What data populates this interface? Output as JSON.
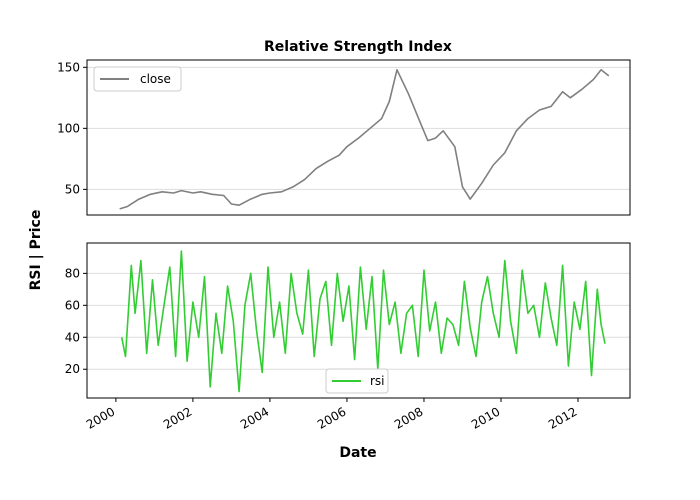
{
  "figure": {
    "title": "Relative Strength Index",
    "ylabel": "RSI | Price",
    "xlabel": "Date"
  },
  "chart_data": [
    {
      "type": "line",
      "panel": "top",
      "title": "Relative Strength Index",
      "xlabel": "",
      "ylabel": "",
      "xlim": [
        1999.25,
        2013.35
      ],
      "ylim": [
        29,
        156
      ],
      "yticks": [
        50,
        100,
        150
      ],
      "grid": "horizontal",
      "legend_position": "top-left",
      "series": [
        {
          "name": "close",
          "color": "#808080",
          "x": [
            2000.1,
            2000.3,
            2000.6,
            2000.9,
            2001.2,
            2001.5,
            2001.7,
            2002.0,
            2002.2,
            2002.5,
            2002.8,
            2003.0,
            2003.2,
            2003.5,
            2003.8,
            2004.0,
            2004.3,
            2004.6,
            2004.9,
            2005.2,
            2005.5,
            2005.8,
            2006.0,
            2006.3,
            2006.6,
            2006.9,
            2007.1,
            2007.3,
            2007.6,
            2007.9,
            2008.1,
            2008.3,
            2008.5,
            2008.8,
            2009.0,
            2009.2,
            2009.5,
            2009.8,
            2010.1,
            2010.4,
            2010.7,
            2011.0,
            2011.3,
            2011.6,
            2011.8,
            2012.1,
            2012.4,
            2012.6,
            2012.8
          ],
          "y": [
            34,
            36,
            42,
            46,
            48,
            47,
            49,
            47,
            48,
            46,
            45,
            38,
            37,
            42,
            46,
            47,
            48,
            52,
            58,
            67,
            73,
            78,
            85,
            92,
            100,
            108,
            122,
            148,
            128,
            105,
            90,
            92,
            98,
            85,
            52,
            42,
            55,
            70,
            80,
            98,
            108,
            115,
            118,
            130,
            125,
            132,
            140,
            148,
            143
          ]
        }
      ]
    },
    {
      "type": "line",
      "panel": "bottom",
      "xlabel": "Date",
      "ylabel": "",
      "xlim": [
        1999.25,
        2013.35
      ],
      "ylim": [
        2,
        99
      ],
      "yticks": [
        20,
        40,
        60,
        80
      ],
      "xticks": [
        "2000",
        "2002",
        "2004",
        "2006",
        "2008",
        "2010",
        "2012"
      ],
      "xtick_values": [
        2000,
        2002,
        2004,
        2006,
        2008,
        2010,
        2012
      ],
      "grid": "horizontal",
      "legend_position": "lower-center",
      "series": [
        {
          "name": "rsi",
          "color": "#32cd32",
          "x": [
            2000.15,
            2000.25,
            2000.4,
            2000.5,
            2000.65,
            2000.8,
            2000.95,
            2001.1,
            2001.25,
            2001.4,
            2001.55,
            2001.7,
            2001.85,
            2002.0,
            2002.15,
            2002.3,
            2002.45,
            2002.6,
            2002.75,
            2002.9,
            2003.05,
            2003.2,
            2003.35,
            2003.5,
            2003.65,
            2003.8,
            2003.95,
            2004.1,
            2004.25,
            2004.4,
            2004.55,
            2004.7,
            2004.85,
            2005.0,
            2005.15,
            2005.3,
            2005.45,
            2005.6,
            2005.75,
            2005.9,
            2006.05,
            2006.2,
            2006.35,
            2006.5,
            2006.65,
            2006.8,
            2006.95,
            2007.1,
            2007.25,
            2007.4,
            2007.55,
            2007.7,
            2007.85,
            2008.0,
            2008.15,
            2008.3,
            2008.45,
            2008.6,
            2008.75,
            2008.9,
            2009.05,
            2009.2,
            2009.35,
            2009.5,
            2009.65,
            2009.8,
            2009.95,
            2010.1,
            2010.25,
            2010.4,
            2010.55,
            2010.7,
            2010.85,
            2011.0,
            2011.15,
            2011.3,
            2011.45,
            2011.6,
            2011.75,
            2011.9,
            2012.05,
            2012.2,
            2012.35,
            2012.5,
            2012.6,
            2012.7
          ],
          "y": [
            40,
            28,
            85,
            55,
            88,
            30,
            76,
            35,
            60,
            84,
            28,
            94,
            25,
            62,
            40,
            78,
            9,
            55,
            30,
            72,
            50,
            6,
            60,
            80,
            45,
            18,
            84,
            40,
            62,
            30,
            80,
            55,
            42,
            82,
            28,
            64,
            75,
            35,
            80,
            50,
            72,
            26,
            84,
            45,
            78,
            20,
            82,
            48,
            62,
            30,
            55,
            60,
            28,
            82,
            44,
            62,
            30,
            52,
            48,
            35,
            75,
            46,
            28,
            62,
            78,
            55,
            40,
            88,
            50,
            30,
            82,
            55,
            60,
            40,
            74,
            52,
            35,
            85,
            22,
            62,
            45,
            75,
            16,
            70,
            48,
            36
          ]
        }
      ]
    }
  ]
}
